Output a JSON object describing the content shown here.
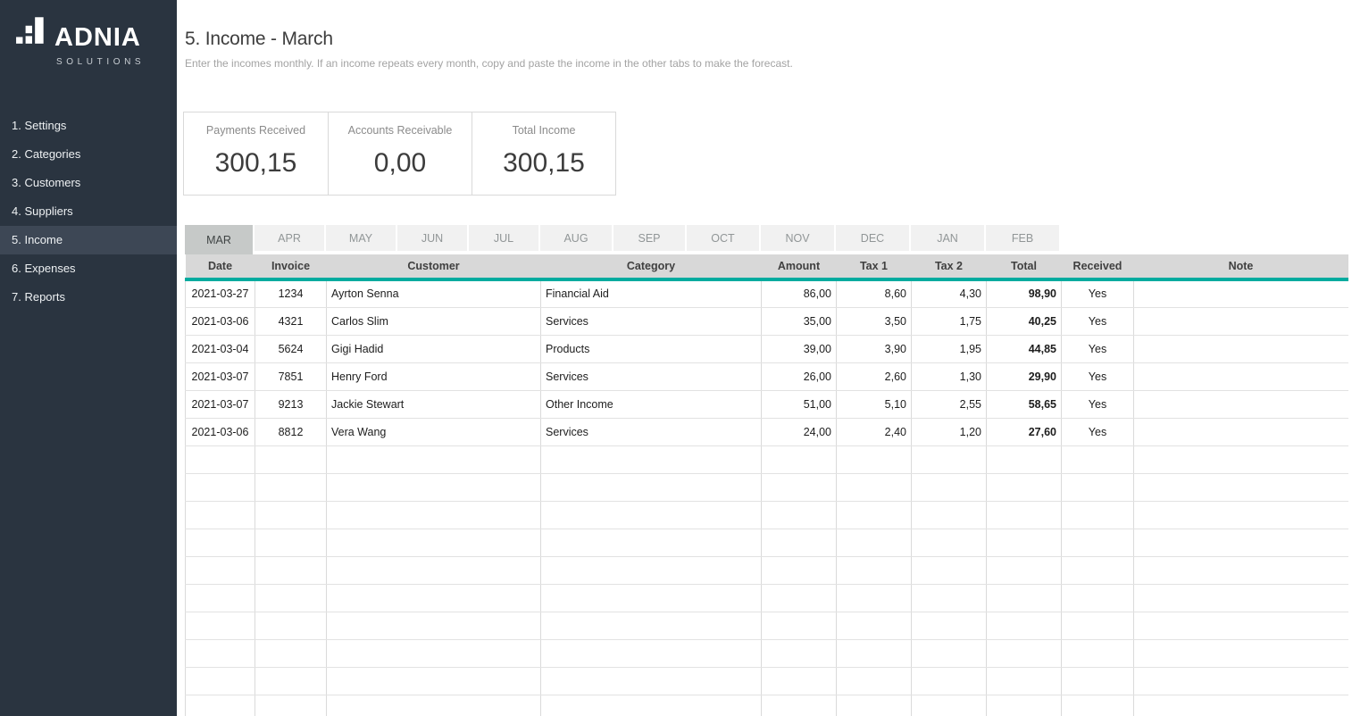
{
  "sidebar": {
    "logo": {
      "brand": "ADNIA",
      "subbrand": "SOLUTIONS"
    },
    "items": [
      {
        "label": "1. Settings",
        "active": false
      },
      {
        "label": "2. Categories",
        "active": false
      },
      {
        "label": "3. Customers",
        "active": false
      },
      {
        "label": "4. Suppliers",
        "active": false
      },
      {
        "label": "5. Income",
        "active": true
      },
      {
        "label": "6. Expenses",
        "active": false
      },
      {
        "label": "7. Reports",
        "active": false
      }
    ]
  },
  "header": {
    "title": "5. Income - March",
    "subtitle": "Enter the incomes monthly. If an income repeats every month, copy and paste the income in the other tabs to make the forecast."
  },
  "summary_cards": [
    {
      "label": "Payments Received",
      "value": "300,15"
    },
    {
      "label": "Accounts Receivable",
      "value": "0,00"
    },
    {
      "label": "Total Income",
      "value": "300,15"
    }
  ],
  "tabs": {
    "active": "MAR",
    "items": [
      "MAR",
      "APR",
      "MAY",
      "JUN",
      "JUL",
      "AUG",
      "SEP",
      "OCT",
      "NOV",
      "DEC",
      "JAN",
      "FEB"
    ]
  },
  "table": {
    "columns": [
      "Date",
      "Invoice",
      "Customer",
      "Category",
      "Amount",
      "Tax 1",
      "Tax 2",
      "Total",
      "Received",
      "Note"
    ],
    "rows": [
      {
        "date": "2021-03-27",
        "invoice": "1234",
        "customer": "Ayrton Senna",
        "category": "Financial Aid",
        "amount": "86,00",
        "tax1": "8,60",
        "tax2": "4,30",
        "total": "98,90",
        "received": "Yes",
        "note": ""
      },
      {
        "date": "2021-03-06",
        "invoice": "4321",
        "customer": "Carlos Slim",
        "category": "Services",
        "amount": "35,00",
        "tax1": "3,50",
        "tax2": "1,75",
        "total": "40,25",
        "received": "Yes",
        "note": ""
      },
      {
        "date": "2021-03-04",
        "invoice": "5624",
        "customer": "Gigi Hadid",
        "category": "Products",
        "amount": "39,00",
        "tax1": "3,90",
        "tax2": "1,95",
        "total": "44,85",
        "received": "Yes",
        "note": ""
      },
      {
        "date": "2021-03-07",
        "invoice": "7851",
        "customer": "Henry Ford",
        "category": "Services",
        "amount": "26,00",
        "tax1": "2,60",
        "tax2": "1,30",
        "total": "29,90",
        "received": "Yes",
        "note": ""
      },
      {
        "date": "2021-03-07",
        "invoice": "9213",
        "customer": "Jackie Stewart",
        "category": "Other Income",
        "amount": "51,00",
        "tax1": "5,10",
        "tax2": "2,55",
        "total": "58,65",
        "received": "Yes",
        "note": ""
      },
      {
        "date": "2021-03-06",
        "invoice": "8812",
        "customer": "Vera Wang",
        "category": "Services",
        "amount": "24,00",
        "tax1": "2,40",
        "tax2": "1,20",
        "total": "27,60",
        "received": "Yes",
        "note": ""
      }
    ],
    "empty_row_count": 10
  },
  "colors": {
    "accent_teal": "#00ab9f",
    "sidebar_bg": "#2a3440",
    "sidebar_active_bg": "#3d4755",
    "header_row_bg": "#d8d8d8",
    "active_tab_bg": "#c6c9c8",
    "inactive_tab_bg": "#f1f1f1"
  }
}
